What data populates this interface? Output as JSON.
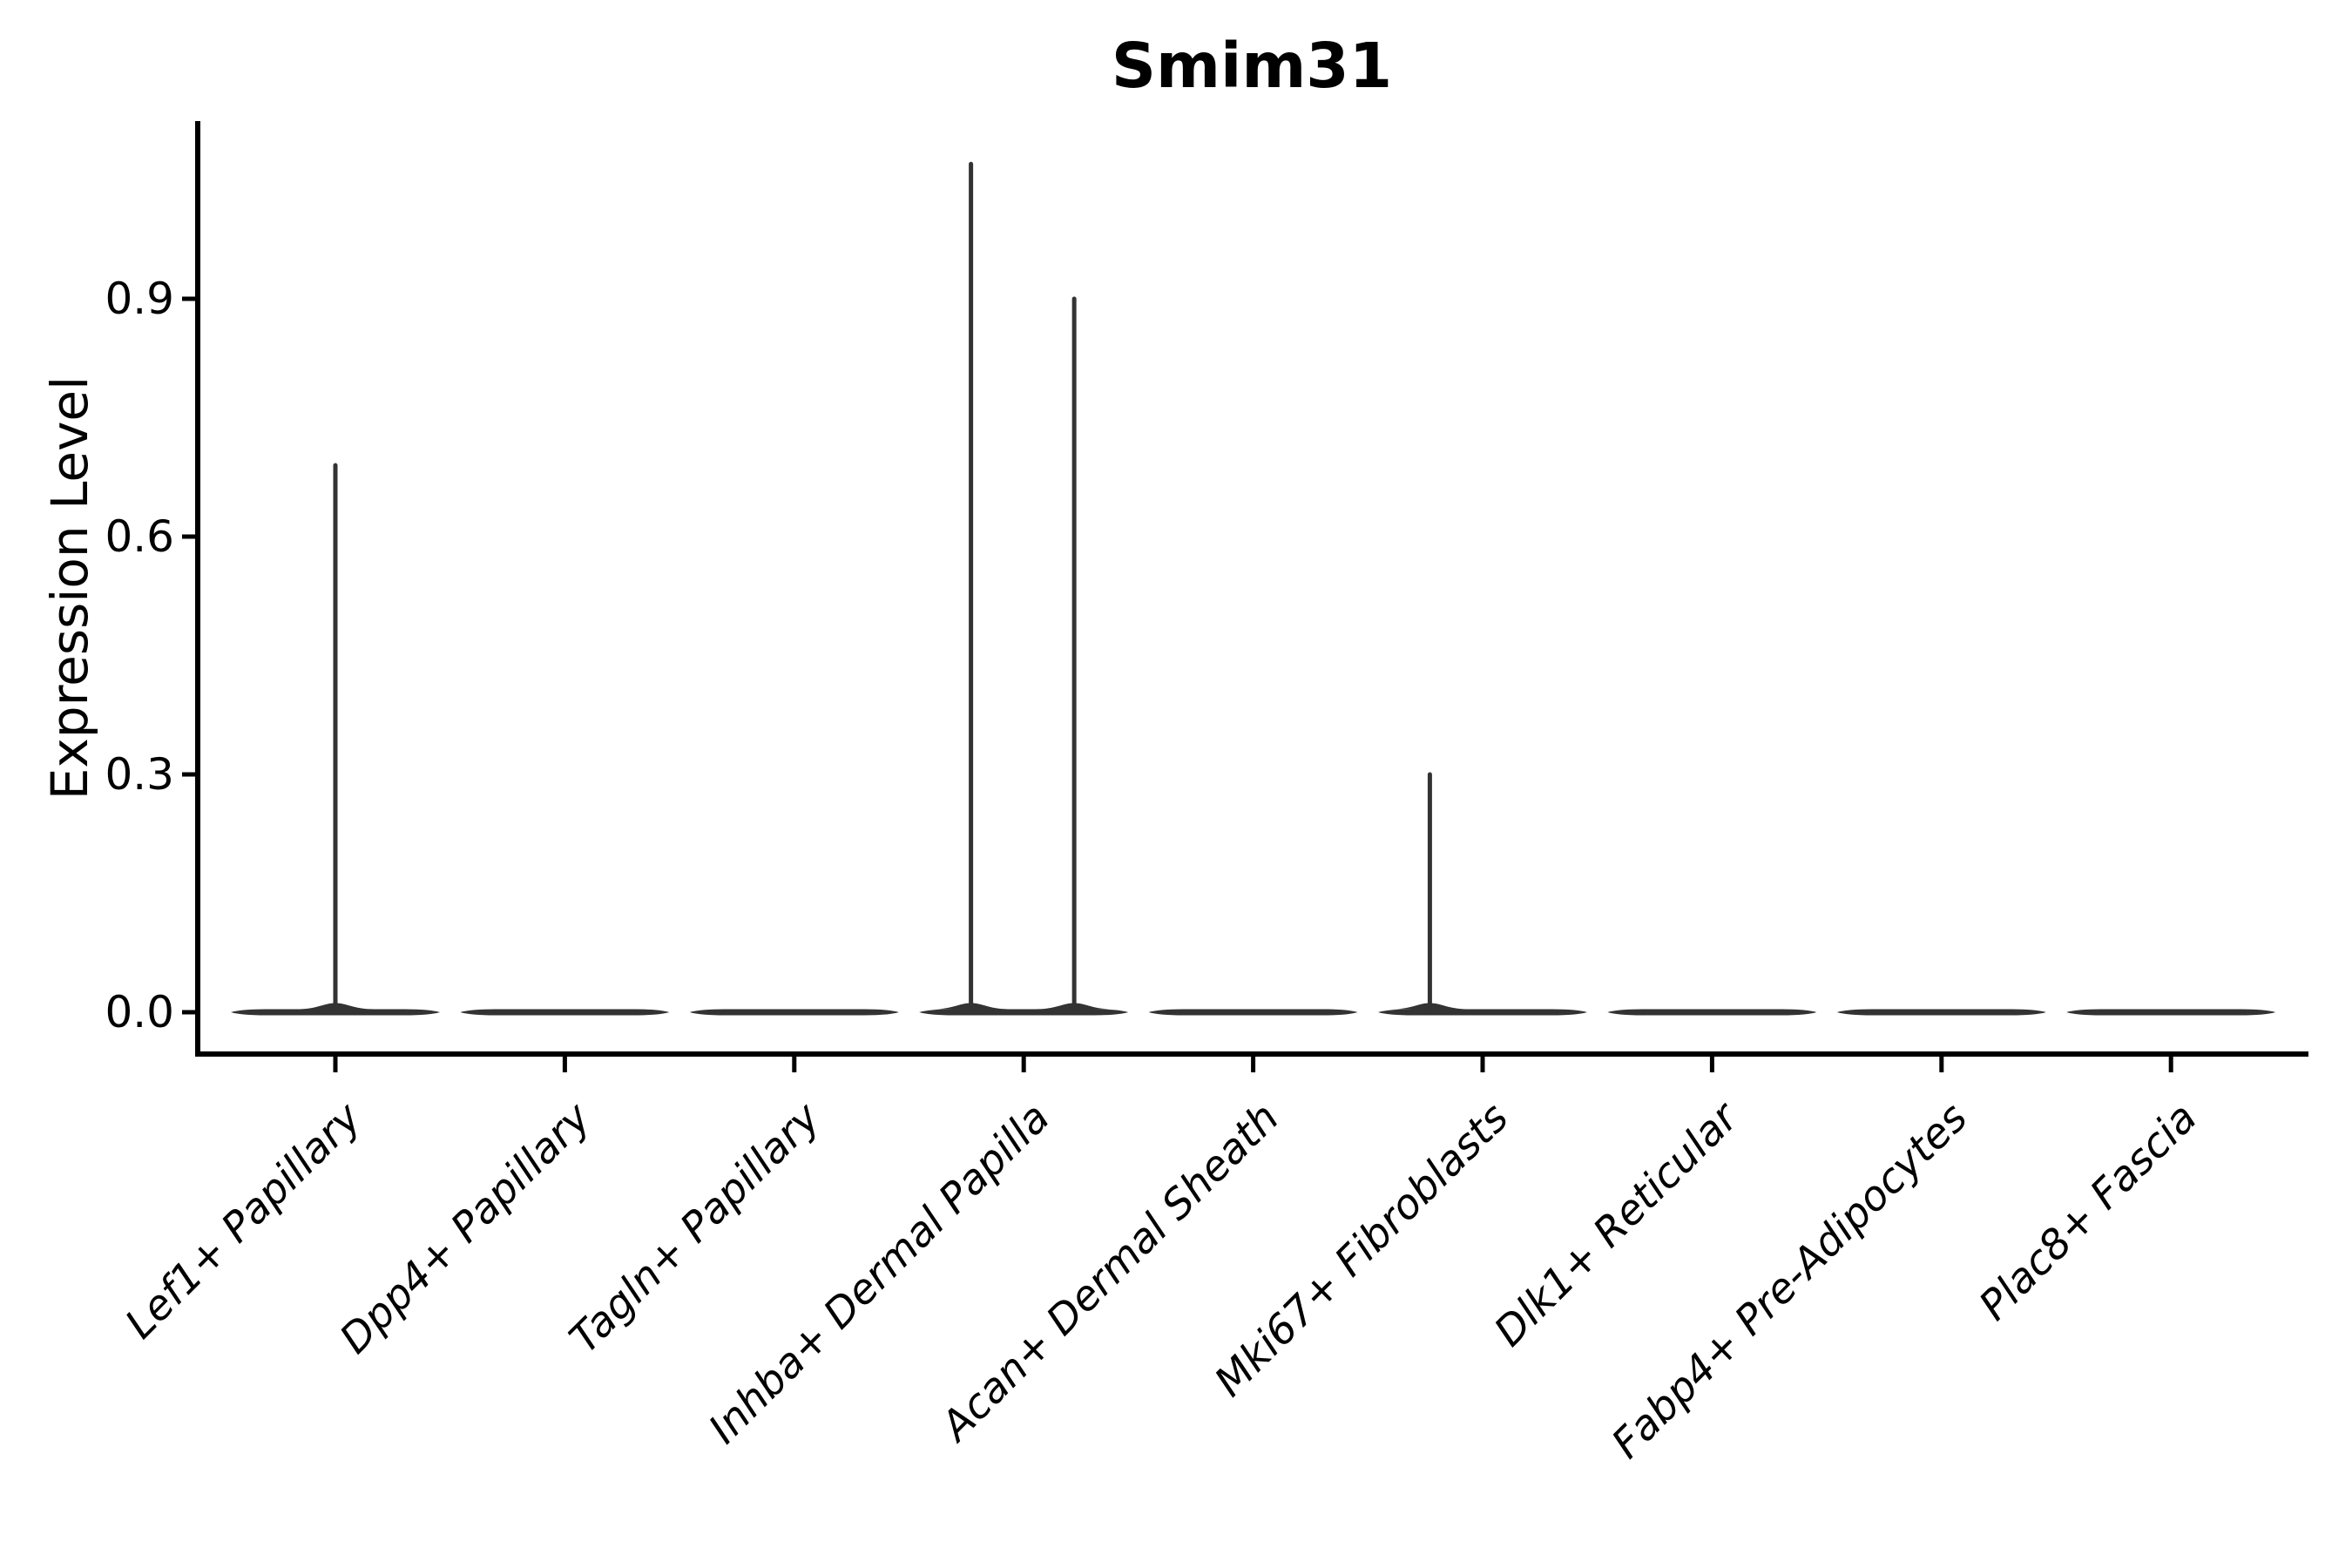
{
  "figure": {
    "background": "#ffffff"
  },
  "chart_data": {
    "type": "violin",
    "title": "Smim31",
    "ylabel": "Expression Level",
    "xlabel": "",
    "yticks": [
      0.0,
      0.3,
      0.6,
      0.9
    ],
    "ytick_labels": [
      "0.0",
      "0.3",
      "0.6",
      "0.9"
    ],
    "ylim": [
      -0.05,
      1.12
    ],
    "grid": false,
    "legend": "none",
    "xtick_rotation_deg": 45,
    "categories": [
      "Lef1+ Papillary",
      "Dpp4+ Papillary",
      "Tagln+ Papillary",
      "Inhba+ Dermal Papilla",
      "Acan+ Dermal Sheath",
      "Mki67+ Fibroblasts",
      "Dlk1+ Reticular",
      "Fabp4+ Pre-Adipocytes",
      "Plac8+ Fascia"
    ],
    "violins": [
      {
        "category": "Lef1+ Papillary",
        "baseline": 0.0,
        "peaks": [
          {
            "x_offset": 0.0,
            "max": 0.69
          }
        ]
      },
      {
        "category": "Dpp4+ Papillary",
        "baseline": 0.0,
        "peaks": []
      },
      {
        "category": "Tagln+ Papillary",
        "baseline": 0.0,
        "peaks": []
      },
      {
        "category": "Inhba+ Dermal Papilla",
        "baseline": 0.0,
        "peaks": [
          {
            "x_offset": -0.23,
            "max": 1.07
          },
          {
            "x_offset": 0.22,
            "max": 0.9
          }
        ]
      },
      {
        "category": "Acan+ Dermal Sheath",
        "baseline": 0.0,
        "peaks": []
      },
      {
        "category": "Mki67+ Fibroblasts",
        "baseline": 0.0,
        "peaks": [
          {
            "x_offset": -0.23,
            "max": 0.3
          }
        ]
      },
      {
        "category": "Dlk1+ Reticular",
        "baseline": 0.0,
        "peaks": []
      },
      {
        "category": "Fabp4+ Pre-Adipocytes",
        "baseline": 0.0,
        "peaks": []
      },
      {
        "category": "Plac8+ Fascia",
        "baseline": 0.0,
        "peaks": []
      }
    ],
    "style": {
      "violin_color": "#333333",
      "axis_color": "#000000",
      "text_color": "#000000",
      "background": "#ffffff"
    }
  }
}
